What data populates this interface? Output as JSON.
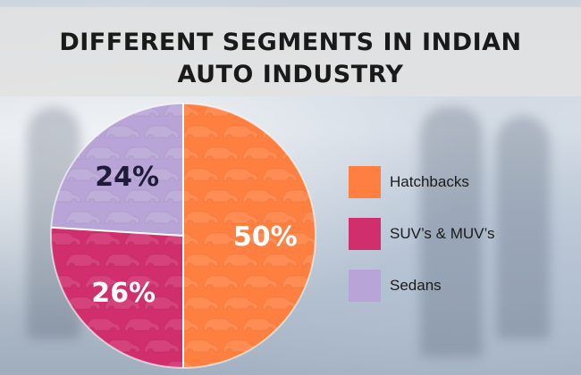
{
  "title": {
    "line1": "DIFFERENT SEGMENTS IN INDIAN",
    "line2": "AUTO INDUSTRY"
  },
  "colors": {
    "hatchbacks": "#ff7f40",
    "suvs": "#d02e6c",
    "sedans": "#b8a4d6",
    "label_light": "#ffffff",
    "label_dark": "#1f1b3a"
  },
  "chart_data": {
    "type": "pie",
    "title": "DIFFERENT SEGMENTS IN INDIAN AUTO INDUSTRY",
    "categories": [
      "Hatchbacks",
      "SUV’s & MUV’s",
      "Sedans"
    ],
    "values": [
      50,
      26,
      24
    ],
    "data_labels": [
      "50%",
      "26%",
      "24%"
    ],
    "legend_position": "right"
  },
  "legend": [
    {
      "label": "Hatchbacks",
      "color": "#ff7f40"
    },
    {
      "label": "SUV’s & MUV’s",
      "color": "#d02e6c"
    },
    {
      "label": "Sedans",
      "color": "#b8a4d6"
    }
  ]
}
